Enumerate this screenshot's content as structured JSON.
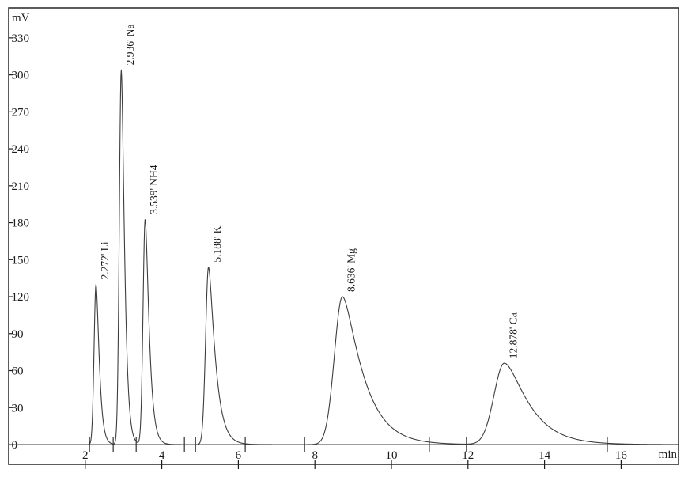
{
  "colors": {
    "ink": "#1b1b1b",
    "curve": "#3d3d3d",
    "frame": "#333333",
    "background": "#ffffff"
  },
  "chart_data": {
    "type": "line",
    "kind": "ion-chromatogram",
    "title": "",
    "xlabel": "min",
    "ylabel": "mV",
    "xlim": [
      0,
      17.5
    ],
    "ylim": [
      0,
      354
    ],
    "grid": false,
    "x_ticks": [
      2,
      4,
      6,
      8,
      10,
      12,
      14,
      16
    ],
    "y_ticks": [
      0,
      30,
      60,
      90,
      120,
      150,
      180,
      210,
      240,
      270,
      300,
      330
    ],
    "peaks": [
      {
        "analyte": "Li",
        "retention_min": 2.272,
        "label": "2.272' Li",
        "height_mV": 130,
        "render": {
          "apex_t": 2.28,
          "sigma_left": 0.05,
          "sigma_right": 0.055,
          "tail": 0.6
        }
      },
      {
        "analyte": "Na",
        "retention_min": 2.936,
        "label": "2.936' Na",
        "height_mV": 304,
        "render": {
          "apex_t": 2.94,
          "sigma_left": 0.05,
          "sigma_right": 0.055,
          "tail": 0.6
        }
      },
      {
        "analyte": "NH4",
        "retention_min": 3.539,
        "label": "3.539' NH4",
        "height_mV": 183,
        "render": {
          "apex_t": 3.565,
          "sigma_left": 0.055,
          "sigma_right": 0.062,
          "tail": 0.7
        }
      },
      {
        "analyte": "K",
        "retention_min": 5.188,
        "label": "5.188' K",
        "height_mV": 144,
        "render": {
          "apex_t": 5.22,
          "sigma_left": 0.075,
          "sigma_right": 0.09,
          "tail": 0.9
        }
      },
      {
        "analyte": "Mg",
        "retention_min": 8.636,
        "label": "8.636' Mg",
        "height_mV": 120,
        "render": {
          "apex_t": 8.72,
          "sigma_left": 0.21,
          "sigma_right": 0.25,
          "tail": 1.0
        }
      },
      {
        "analyte": "Ca",
        "retention_min": 12.878,
        "label": "12.878' Ca",
        "height_mV": 66,
        "render": {
          "apex_t": 12.95,
          "sigma_left": 0.27,
          "sigma_right": 0.35,
          "tail": 0.8
        }
      }
    ],
    "integration_marks_min": [
      2.11,
      2.73,
      3.33,
      4.59,
      4.88,
      6.18,
      7.73,
      10.99,
      11.96,
      15.64
    ],
    "legend": null
  }
}
